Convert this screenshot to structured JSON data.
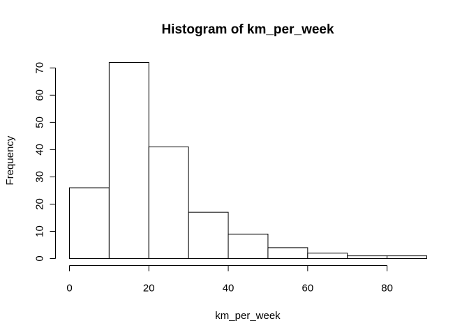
{
  "chart_data": {
    "type": "bar",
    "title": "Histogram of km_per_week",
    "xlabel": "km_per_week",
    "ylabel": "Frequency",
    "bins": [
      {
        "start": 0,
        "end": 10,
        "count": 26
      },
      {
        "start": 10,
        "end": 20,
        "count": 72
      },
      {
        "start": 20,
        "end": 30,
        "count": 41
      },
      {
        "start": 30,
        "end": 40,
        "count": 17
      },
      {
        "start": 40,
        "end": 50,
        "count": 9
      },
      {
        "start": 50,
        "end": 60,
        "count": 4
      },
      {
        "start": 60,
        "end": 70,
        "count": 2
      },
      {
        "start": 70,
        "end": 80,
        "count": 1
      },
      {
        "start": 80,
        "end": 90,
        "count": 1
      }
    ],
    "xlim": [
      0,
      90
    ],
    "ylim": [
      0,
      72
    ],
    "x_ticks": [
      0,
      20,
      40,
      60,
      80
    ],
    "y_ticks": [
      0,
      10,
      20,
      30,
      40,
      50,
      60,
      70
    ],
    "grid": false,
    "legend": "none",
    "bar_fill": "#ffffff",
    "bar_stroke": "#000000"
  }
}
